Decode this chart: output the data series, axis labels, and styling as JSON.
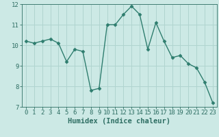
{
  "x": [
    0,
    1,
    2,
    3,
    4,
    5,
    6,
    7,
    8,
    9,
    10,
    11,
    12,
    13,
    14,
    15,
    16,
    17,
    18,
    19,
    20,
    21,
    22,
    23
  ],
  "y": [
    10.2,
    10.1,
    10.2,
    10.3,
    10.1,
    9.2,
    9.8,
    9.7,
    7.8,
    7.9,
    11.0,
    11.0,
    11.5,
    11.9,
    11.5,
    9.8,
    11.1,
    10.2,
    9.4,
    9.5,
    9.1,
    8.9,
    8.2,
    7.2
  ],
  "line_color": "#2e7d6e",
  "marker": "D",
  "markersize": 2.5,
  "linewidth": 1.0,
  "bg_color": "#cce9e5",
  "grid_color": "#b0d4cf",
  "xlabel": "Humidex (Indice chaleur)",
  "xlim": [
    -0.5,
    23.5
  ],
  "ylim": [
    7,
    12
  ],
  "yticks": [
    7,
    8,
    9,
    10,
    11,
    12
  ],
  "xticks": [
    0,
    1,
    2,
    3,
    4,
    5,
    6,
    7,
    8,
    9,
    10,
    11,
    12,
    13,
    14,
    15,
    16,
    17,
    18,
    19,
    20,
    21,
    22,
    23
  ],
  "tick_color": "#2e6e63",
  "xlabel_fontsize": 7.5,
  "tick_fontsize": 6.5,
  "spine_color": "#2e6e63"
}
